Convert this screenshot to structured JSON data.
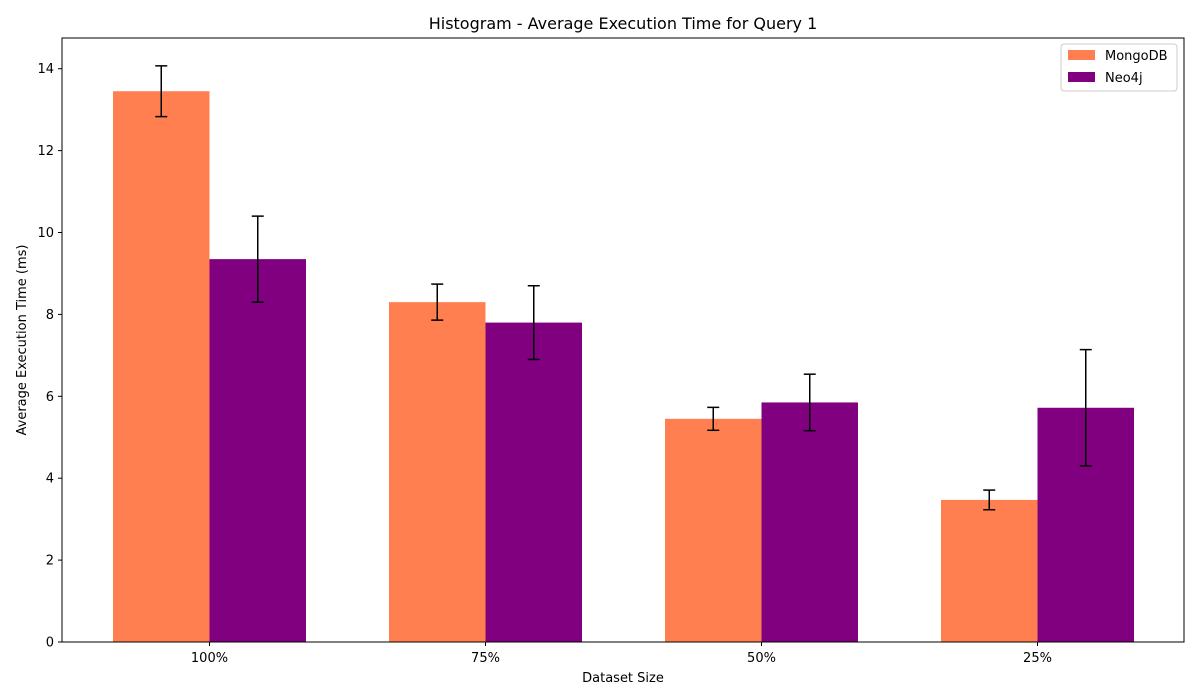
{
  "chart_data": {
    "type": "bar",
    "title": "Histogram - Average Execution Time for Query 1",
    "xlabel": "Dataset Size",
    "ylabel": "Average Execution Time (ms)",
    "categories": [
      "100%",
      "75%",
      "50%",
      "25%"
    ],
    "ylim": [
      0,
      14.75
    ],
    "yticks": [
      0,
      2,
      4,
      6,
      8,
      10,
      12,
      14
    ],
    "grid": false,
    "legend_position": "top-right",
    "series": [
      {
        "name": "MongoDB",
        "color": "#FF7F50",
        "values": [
          13.45,
          8.3,
          5.45,
          3.47
        ],
        "errors": [
          0.62,
          0.44,
          0.28,
          0.24
        ]
      },
      {
        "name": "Neo4j",
        "color": "#800080",
        "values": [
          9.35,
          7.8,
          5.85,
          5.72
        ],
        "errors": [
          1.05,
          0.9,
          0.69,
          1.42
        ]
      }
    ]
  }
}
